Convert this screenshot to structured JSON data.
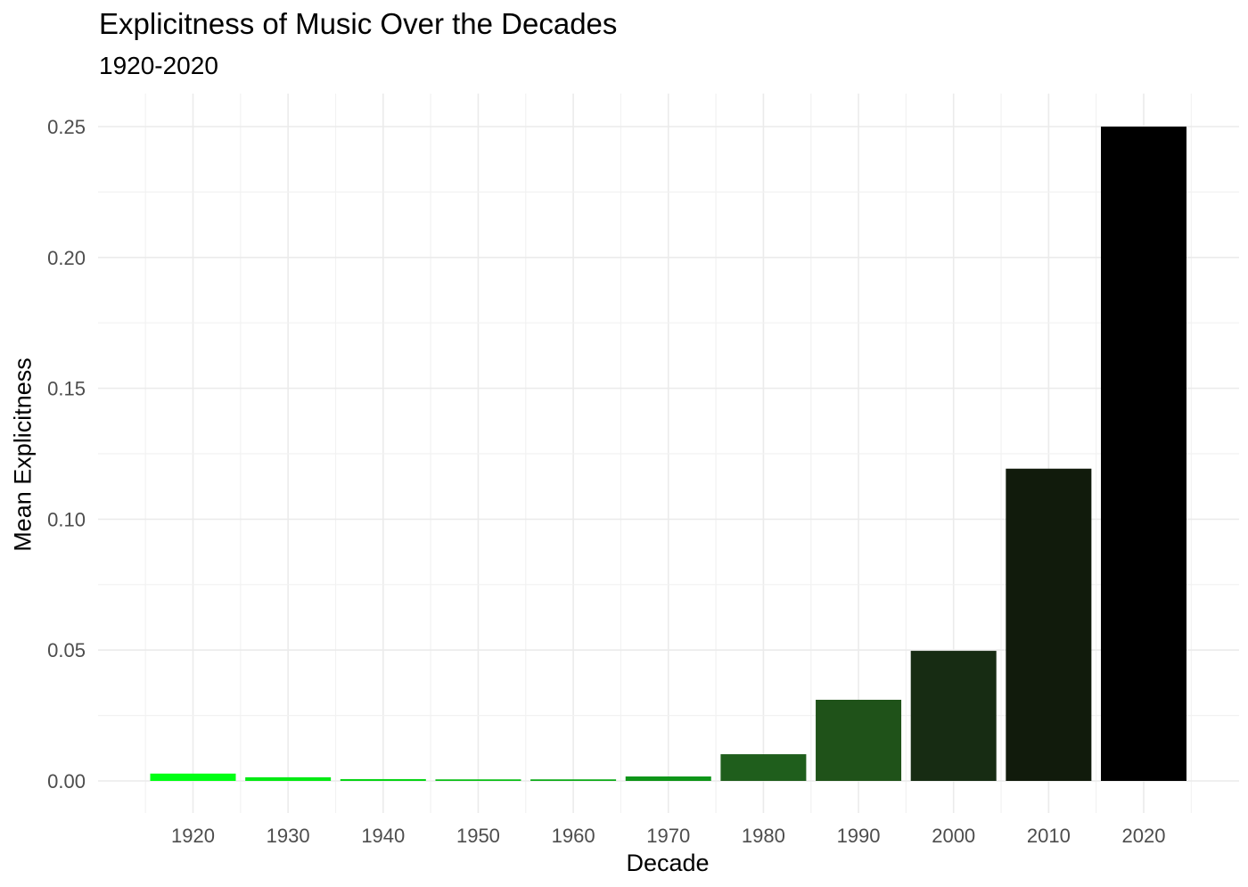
{
  "chart_data": {
    "type": "bar",
    "title": "Explicitness of Music Over the Decades",
    "subtitle": "1920-2020",
    "xlabel": "Decade",
    "ylabel": "Mean Explicitness",
    "categories": [
      "1920",
      "1930",
      "1940",
      "1950",
      "1960",
      "1970",
      "1980",
      "1990",
      "2000",
      "2010",
      "2020"
    ],
    "values": [
      0.0028,
      0.0014,
      0.0007,
      0.0006,
      0.0006,
      0.0017,
      0.0102,
      0.031,
      0.0497,
      0.1193,
      0.25
    ],
    "colors": [
      "#00ff14",
      "#04ea14",
      "#07d415",
      "#0abf16",
      "#0caa17",
      "#0e9518",
      "#1f5e1c",
      "#1f5219",
      "#172c13",
      "#111b0c",
      "#000000"
    ],
    "yticks": [
      "0.00",
      "0.05",
      "0.10",
      "0.15",
      "0.20",
      "0.25"
    ],
    "ylim": [
      0,
      0.25
    ],
    "grid": true,
    "legend": "none"
  }
}
